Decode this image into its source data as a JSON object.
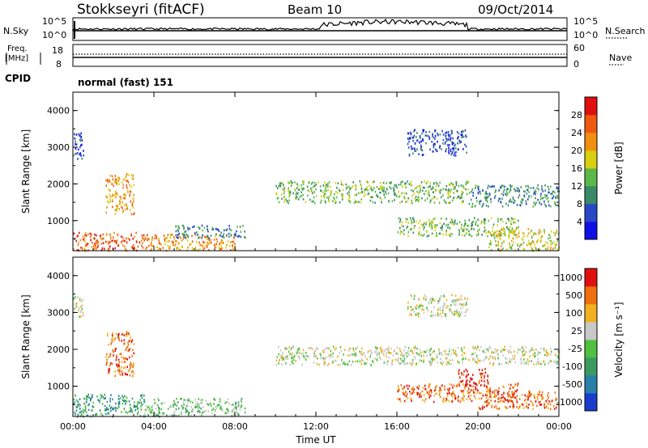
{
  "header": {
    "station": "Stokkseyri (fitACF)",
    "beam": "Beam 10",
    "date": "09/Oct/2014"
  },
  "strip": {
    "nsky_label": "N.Sky",
    "nsky_ticks": [
      "10^5",
      "10^0"
    ],
    "nsearch_label": "N.Search",
    "freq_label": "Freq.",
    "freq_unit": "[MHz]",
    "freq_ticks": [
      "18",
      "8"
    ],
    "nave_ticks": [
      "60",
      "0"
    ],
    "nave_label": "Nave",
    "cpid_label": "CPID",
    "cpid_value": "normal (fast) 151"
  },
  "chart_data": [
    {
      "type": "heatmap",
      "panel": "power",
      "xlabel": "",
      "ylabel": "Slant Range [km]",
      "x_ticks": [
        "00:00",
        "04:00",
        "08:00",
        "12:00",
        "16:00",
        "20:00",
        "00:00"
      ],
      "xlim": [
        0,
        24
      ],
      "ylim": [
        180,
        4500
      ],
      "y_ticks": [
        1000,
        2000,
        3000,
        4000
      ],
      "colorbar": {
        "label": "Power [dB]",
        "ticks": [
          4,
          8,
          12,
          16,
          20,
          24,
          28
        ],
        "colors": [
          "#1010e6",
          "#2848c8",
          "#3a8a6a",
          "#5ab848",
          "#d8d010",
          "#f09010",
          "#f05a10",
          "#e01010"
        ]
      },
      "regions": [
        {
          "t0": 0.0,
          "t1": 0.5,
          "r0": 2700,
          "r1": 3500,
          "level": 1
        },
        {
          "t0": 1.6,
          "t1": 3.0,
          "r0": 1200,
          "r1": 2300,
          "level": 5
        },
        {
          "t0": 0.0,
          "t1": 3.5,
          "r0": 200,
          "r1": 700,
          "level": 6
        },
        {
          "t0": 3.5,
          "t1": 8.0,
          "r0": 200,
          "r1": 650,
          "level": 5
        },
        {
          "t0": 5.0,
          "t1": 8.5,
          "r0": 550,
          "r1": 900,
          "level": 2
        },
        {
          "t0": 10.0,
          "t1": 19.5,
          "r0": 1500,
          "r1": 2100,
          "level": 3
        },
        {
          "t0": 19.5,
          "t1": 24.0,
          "r0": 1400,
          "r1": 2000,
          "level": 2
        },
        {
          "t0": 16.5,
          "t1": 19.5,
          "r0": 2800,
          "r1": 3500,
          "level": 1
        },
        {
          "t0": 16.0,
          "t1": 22.0,
          "r0": 600,
          "r1": 1100,
          "level": 3
        },
        {
          "t0": 20.5,
          "t1": 24.0,
          "r0": 200,
          "r1": 800,
          "level": 4
        }
      ]
    },
    {
      "type": "heatmap",
      "panel": "velocity",
      "xlabel": "Time UT",
      "ylabel": "Slant Range [km]",
      "x_ticks": [
        "00:00",
        "04:00",
        "08:00",
        "12:00",
        "16:00",
        "20:00",
        "00:00"
      ],
      "xlim": [
        0,
        24
      ],
      "ylim": [
        180,
        4500
      ],
      "y_ticks": [
        1000,
        2000,
        3000,
        4000
      ],
      "colorbar": {
        "label": "Velocity [m s⁻¹]",
        "ticks": [
          "1000",
          "500",
          "100",
          "25",
          "-25",
          "-100",
          "-500",
          "-1000"
        ],
        "colors": [
          "#1a3ccc",
          "#2a80a8",
          "#3a9a60",
          "#50c040",
          "#c8c8c8",
          "#f0b020",
          "#f07010",
          "#e01010"
        ]
      },
      "regions": [
        {
          "t0": 0.0,
          "t1": 0.5,
          "r0": 2900,
          "r1": 3500,
          "level": 4
        },
        {
          "t0": 1.6,
          "t1": 3.0,
          "r0": 1300,
          "r1": 2500,
          "level": 6
        },
        {
          "t0": 0.0,
          "t1": 3.5,
          "r0": 200,
          "r1": 800,
          "level": 2
        },
        {
          "t0": 3.5,
          "t1": 8.5,
          "r0": 200,
          "r1": 700,
          "level": 3
        },
        {
          "t0": 10.0,
          "t1": 24.0,
          "r0": 1600,
          "r1": 2100,
          "level": 4
        },
        {
          "t0": 16.5,
          "t1": 19.5,
          "r0": 2900,
          "r1": 3500,
          "level": 4
        },
        {
          "t0": 16.0,
          "t1": 22.0,
          "r0": 600,
          "r1": 1100,
          "level": 6
        },
        {
          "t0": 20.0,
          "t1": 24.0,
          "r0": 400,
          "r1": 900,
          "level": 6
        },
        {
          "t0": 19.0,
          "t1": 20.5,
          "r0": 1000,
          "r1": 1500,
          "level": 7
        }
      ]
    }
  ]
}
